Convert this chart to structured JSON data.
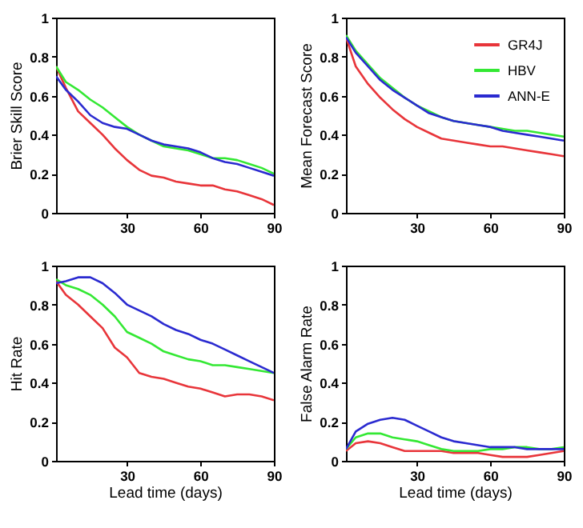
{
  "chart_data": [
    {
      "type": "line",
      "ylabel": "Brier Skill Score",
      "x": [
        1,
        5,
        10,
        15,
        20,
        25,
        30,
        35,
        40,
        45,
        50,
        55,
        60,
        65,
        70,
        75,
        80,
        85,
        90
      ],
      "xlim": [
        1,
        90
      ],
      "xticks": [
        30,
        60,
        90
      ],
      "ylim": [
        0,
        1
      ],
      "yticks": [
        0,
        0.2,
        0.4,
        0.6,
        0.8,
        1
      ],
      "grid": false,
      "legend": false,
      "series": [
        {
          "color": "#e8353a",
          "values": [
            0.75,
            0.64,
            0.52,
            0.46,
            0.4,
            0.33,
            0.27,
            0.22,
            0.19,
            0.18,
            0.16,
            0.15,
            0.14,
            0.14,
            0.12,
            0.11,
            0.09,
            0.07,
            0.04
          ]
        },
        {
          "color": "#33e833",
          "values": [
            0.75,
            0.67,
            0.63,
            0.58,
            0.54,
            0.49,
            0.44,
            0.4,
            0.37,
            0.34,
            0.33,
            0.32,
            0.3,
            0.28,
            0.28,
            0.27,
            0.25,
            0.23,
            0.2
          ]
        },
        {
          "color": "#2a2ad0",
          "values": [
            0.7,
            0.63,
            0.57,
            0.5,
            0.46,
            0.44,
            0.43,
            0.4,
            0.37,
            0.35,
            0.34,
            0.33,
            0.31,
            0.28,
            0.26,
            0.25,
            0.23,
            0.21,
            0.19
          ]
        }
      ]
    },
    {
      "type": "line",
      "ylabel": "Mean Forecast Score",
      "x": [
        1,
        5,
        10,
        15,
        20,
        25,
        30,
        35,
        40,
        45,
        50,
        55,
        60,
        65,
        70,
        75,
        80,
        85,
        90
      ],
      "xlim": [
        1,
        90
      ],
      "xticks": [
        30,
        60,
        90
      ],
      "ylim": [
        0,
        1
      ],
      "yticks": [
        0,
        0.2,
        0.4,
        0.6,
        0.8,
        1
      ],
      "grid": false,
      "legend": "top right",
      "series": [
        {
          "name": "GR4J",
          "color": "#e8353a",
          "values": [
            0.9,
            0.75,
            0.66,
            0.59,
            0.53,
            0.48,
            0.44,
            0.41,
            0.38,
            0.37,
            0.36,
            0.35,
            0.34,
            0.34,
            0.33,
            0.32,
            0.31,
            0.3,
            0.29
          ]
        },
        {
          "name": "HBV",
          "color": "#33e833",
          "values": [
            0.91,
            0.83,
            0.76,
            0.69,
            0.64,
            0.59,
            0.55,
            0.52,
            0.49,
            0.47,
            0.46,
            0.45,
            0.44,
            0.43,
            0.42,
            0.42,
            0.41,
            0.4,
            0.39
          ]
        },
        {
          "name": "ANN-E",
          "color": "#2a2ad0",
          "values": [
            0.9,
            0.82,
            0.75,
            0.68,
            0.63,
            0.59,
            0.55,
            0.51,
            0.49,
            0.47,
            0.46,
            0.45,
            0.44,
            0.42,
            0.41,
            0.4,
            0.39,
            0.38,
            0.37
          ]
        }
      ]
    },
    {
      "type": "line",
      "xlabel": "Lead time (days)",
      "ylabel": "Hit Rate",
      "x": [
        1,
        5,
        10,
        15,
        20,
        25,
        30,
        35,
        40,
        45,
        50,
        55,
        60,
        65,
        70,
        75,
        80,
        85,
        90
      ],
      "xlim": [
        1,
        90
      ],
      "xticks": [
        30,
        60,
        90
      ],
      "ylim": [
        0,
        1
      ],
      "yticks": [
        0,
        0.2,
        0.4,
        0.6,
        0.8,
        1
      ],
      "grid": false,
      "legend": false,
      "series": [
        {
          "color": "#e8353a",
          "values": [
            0.92,
            0.85,
            0.8,
            0.74,
            0.68,
            0.58,
            0.53,
            0.45,
            0.43,
            0.42,
            0.4,
            0.38,
            0.37,
            0.35,
            0.33,
            0.34,
            0.34,
            0.33,
            0.31
          ]
        },
        {
          "color": "#33e833",
          "values": [
            0.93,
            0.9,
            0.88,
            0.85,
            0.8,
            0.74,
            0.66,
            0.63,
            0.6,
            0.56,
            0.54,
            0.52,
            0.51,
            0.49,
            0.49,
            0.48,
            0.47,
            0.46,
            0.45
          ]
        },
        {
          "color": "#2a2ad0",
          "values": [
            0.91,
            0.92,
            0.94,
            0.94,
            0.91,
            0.86,
            0.8,
            0.77,
            0.74,
            0.7,
            0.67,
            0.65,
            0.62,
            0.6,
            0.57,
            0.54,
            0.51,
            0.48,
            0.45
          ]
        }
      ]
    },
    {
      "type": "line",
      "xlabel": "Lead time (days)",
      "ylabel": "False Alarm Rate",
      "x": [
        1,
        5,
        10,
        15,
        20,
        25,
        30,
        35,
        40,
        45,
        50,
        55,
        60,
        65,
        70,
        75,
        80,
        85,
        90
      ],
      "xlim": [
        1,
        90
      ],
      "xticks": [
        30,
        60,
        90
      ],
      "ylim": [
        0,
        1
      ],
      "yticks": [
        0,
        0.2,
        0.4,
        0.6,
        0.8,
        1
      ],
      "grid": false,
      "legend": false,
      "series": [
        {
          "color": "#e8353a",
          "values": [
            0.05,
            0.09,
            0.1,
            0.09,
            0.07,
            0.05,
            0.05,
            0.05,
            0.05,
            0.04,
            0.04,
            0.04,
            0.03,
            0.02,
            0.02,
            0.02,
            0.03,
            0.04,
            0.05
          ]
        },
        {
          "color": "#33e833",
          "values": [
            0.06,
            0.12,
            0.14,
            0.14,
            0.12,
            0.11,
            0.1,
            0.08,
            0.06,
            0.05,
            0.05,
            0.05,
            0.06,
            0.06,
            0.07,
            0.07,
            0.06,
            0.06,
            0.07
          ]
        },
        {
          "color": "#2a2ad0",
          "values": [
            0.06,
            0.15,
            0.19,
            0.21,
            0.22,
            0.21,
            0.18,
            0.15,
            0.12,
            0.1,
            0.09,
            0.08,
            0.07,
            0.07,
            0.07,
            0.06,
            0.06,
            0.06,
            0.06
          ]
        }
      ]
    }
  ]
}
